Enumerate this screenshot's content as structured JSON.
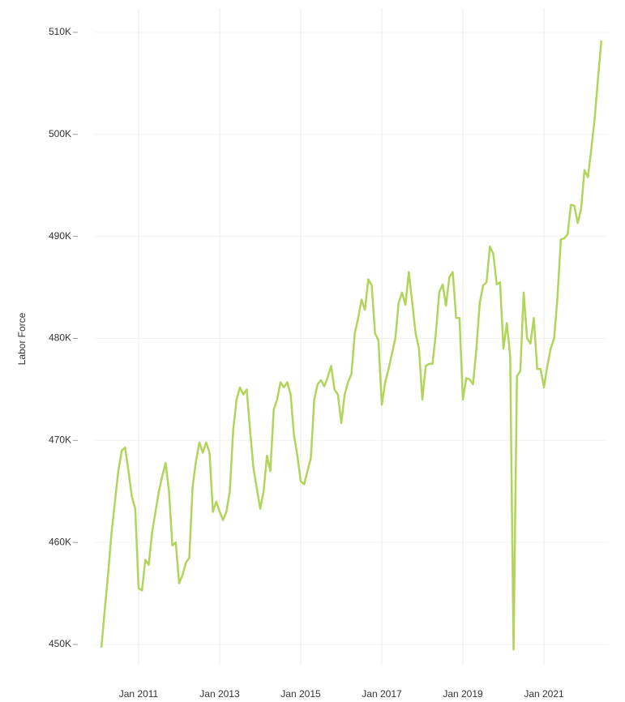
{
  "chart_data": {
    "type": "line",
    "y_label": "Labor Force",
    "x": [
      "2010-02",
      "2010-03",
      "2010-04",
      "2010-05",
      "2010-06",
      "2010-07",
      "2010-08",
      "2010-09",
      "2010-10",
      "2010-11",
      "2010-12",
      "2011-01",
      "2011-02",
      "2011-03",
      "2011-04",
      "2011-05",
      "2011-06",
      "2011-07",
      "2011-08",
      "2011-09",
      "2011-10",
      "2011-11",
      "2011-12",
      "2012-01",
      "2012-02",
      "2012-03",
      "2012-04",
      "2012-05",
      "2012-06",
      "2012-07",
      "2012-08",
      "2012-09",
      "2012-10",
      "2012-11",
      "2012-12",
      "2013-01",
      "2013-02",
      "2013-03",
      "2013-04",
      "2013-05",
      "2013-06",
      "2013-07",
      "2013-08",
      "2013-09",
      "2013-10",
      "2013-11",
      "2013-12",
      "2014-01",
      "2014-02",
      "2014-03",
      "2014-04",
      "2014-05",
      "2014-06",
      "2014-07",
      "2014-08",
      "2014-09",
      "2014-10",
      "2014-11",
      "2014-12",
      "2015-01",
      "2015-02",
      "2015-03",
      "2015-04",
      "2015-05",
      "2015-06",
      "2015-07",
      "2015-08",
      "2015-09",
      "2015-10",
      "2015-11",
      "2015-12",
      "2016-01",
      "2016-02",
      "2016-03",
      "2016-04",
      "2016-05",
      "2016-06",
      "2016-07",
      "2016-08",
      "2016-09",
      "2016-10",
      "2016-11",
      "2016-12",
      "2017-01",
      "2017-02",
      "2017-03",
      "2017-04",
      "2017-05",
      "2017-06",
      "2017-07",
      "2017-08",
      "2017-09",
      "2017-10",
      "2017-11",
      "2017-12",
      "2018-01",
      "2018-02",
      "2018-03",
      "2018-04",
      "2018-05",
      "2018-06",
      "2018-07",
      "2018-08",
      "2018-09",
      "2018-10",
      "2018-11",
      "2018-12",
      "2019-01",
      "2019-02",
      "2019-03",
      "2019-04",
      "2019-05",
      "2019-06",
      "2019-07",
      "2019-08",
      "2019-09",
      "2019-10",
      "2019-11",
      "2019-12",
      "2020-01",
      "2020-02",
      "2020-03",
      "2020-04",
      "2020-05",
      "2020-06",
      "2020-07",
      "2020-08",
      "2020-09",
      "2020-10",
      "2020-11",
      "2020-12",
      "2021-01",
      "2021-02",
      "2021-03",
      "2021-04",
      "2021-05",
      "2021-06",
      "2021-07",
      "2021-08",
      "2021-09",
      "2021-10",
      "2021-11",
      "2021-12",
      "2022-01",
      "2022-02",
      "2022-03",
      "2022-04",
      "2022-05",
      "2022-06"
    ],
    "series": [
      {
        "name": "Labor Force",
        "color": "#b1d55a",
        "values": [
          449700,
          453500,
          457000,
          461000,
          464000,
          467000,
          469000,
          469300,
          467000,
          464500,
          463300,
          455500,
          455300,
          458300,
          457800,
          461000,
          463000,
          465000,
          466500,
          467800,
          465000,
          459700,
          460000,
          456000,
          456800,
          458000,
          458500,
          465500,
          468000,
          469800,
          468800,
          469800,
          468800,
          463000,
          464000,
          463000,
          462200,
          463000,
          465000,
          471000,
          474000,
          475200,
          474500,
          475000,
          471000,
          467300,
          465300,
          463300,
          465000,
          468500,
          467000,
          473000,
          474000,
          475700,
          475200,
          475700,
          474500,
          470500,
          468500,
          466000,
          465700,
          467000,
          468300,
          474000,
          475500,
          475900,
          475300,
          476200,
          477300,
          475000,
          474500,
          471700,
          474500,
          475700,
          476500,
          480500,
          482000,
          483800,
          482800,
          485800,
          485200,
          480500,
          479800,
          473500,
          475700,
          477000,
          478500,
          480000,
          483500,
          484500,
          483300,
          486500,
          483500,
          480500,
          479000,
          474000,
          477300,
          477500,
          477500,
          480500,
          484500,
          485300,
          483200,
          486000,
          486500,
          482000,
          482000,
          474000,
          476100,
          476000,
          475500,
          479000,
          483500,
          485200,
          485500,
          489000,
          488300,
          485300,
          485500,
          479000,
          481500,
          478300,
          449500,
          476300,
          476800,
          484500,
          480000,
          479500,
          482000,
          477000,
          477000,
          475200,
          477300,
          479000,
          480000,
          484000,
          489700,
          489800,
          490200,
          493100,
          493000,
          491300,
          492700,
          496500,
          495800,
          498500,
          501500,
          505500,
          509200
        ]
      }
    ],
    "xlim": [
      "2009-12",
      "2022-08"
    ],
    "xticks": [
      {
        "value": "2011-01",
        "label": "Jan 2011"
      },
      {
        "value": "2013-01",
        "label": "Jan 2013"
      },
      {
        "value": "2015-01",
        "label": "Jan 2015"
      },
      {
        "value": "2017-01",
        "label": "Jan 2017"
      },
      {
        "value": "2019-01",
        "label": "Jan 2019"
      },
      {
        "value": "2021-01",
        "label": "Jan 2021"
      }
    ],
    "ylim": [
      448000,
      511500
    ],
    "yticks": [
      {
        "value": 450000,
        "label": "450K"
      },
      {
        "value": 460000,
        "label": "460K"
      },
      {
        "value": 470000,
        "label": "470K"
      },
      {
        "value": 480000,
        "label": "480K"
      },
      {
        "value": 490000,
        "label": "490K"
      },
      {
        "value": 500000,
        "label": "500K"
      },
      {
        "value": 510000,
        "label": "510K"
      }
    ],
    "grid": true
  }
}
